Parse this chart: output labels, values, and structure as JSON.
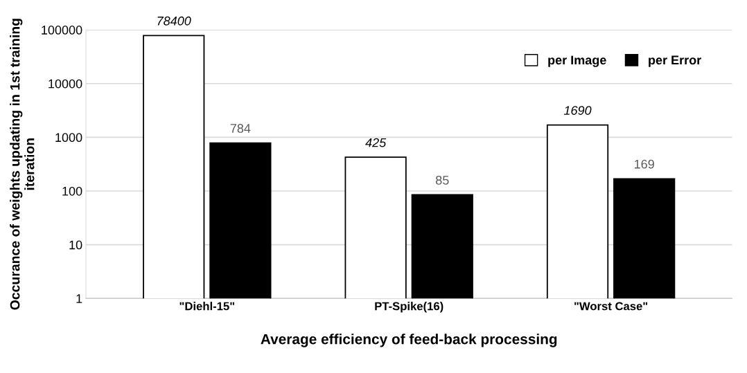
{
  "chart_data": {
    "type": "bar",
    "xlabel": "Average efficiency of feed-back processing",
    "ylabel": "Occurance of weights updating in 1st training iteration",
    "categories": [
      "\"Diehl-15\"",
      "PT-Spike(16)",
      "\"Worst Case\""
    ],
    "series": [
      {
        "name": "per Image",
        "color": "#ffffff",
        "values": [
          78400,
          425,
          1690
        ]
      },
      {
        "name": "per Error",
        "color": "#000000",
        "values": [
          784,
          85,
          169
        ]
      }
    ],
    "log": true,
    "ylim": [
      1,
      100000
    ],
    "yticks": [
      1,
      10,
      100,
      1000,
      10000,
      100000
    ],
    "grid": "y",
    "legend": "top right",
    "data_labels": true
  }
}
